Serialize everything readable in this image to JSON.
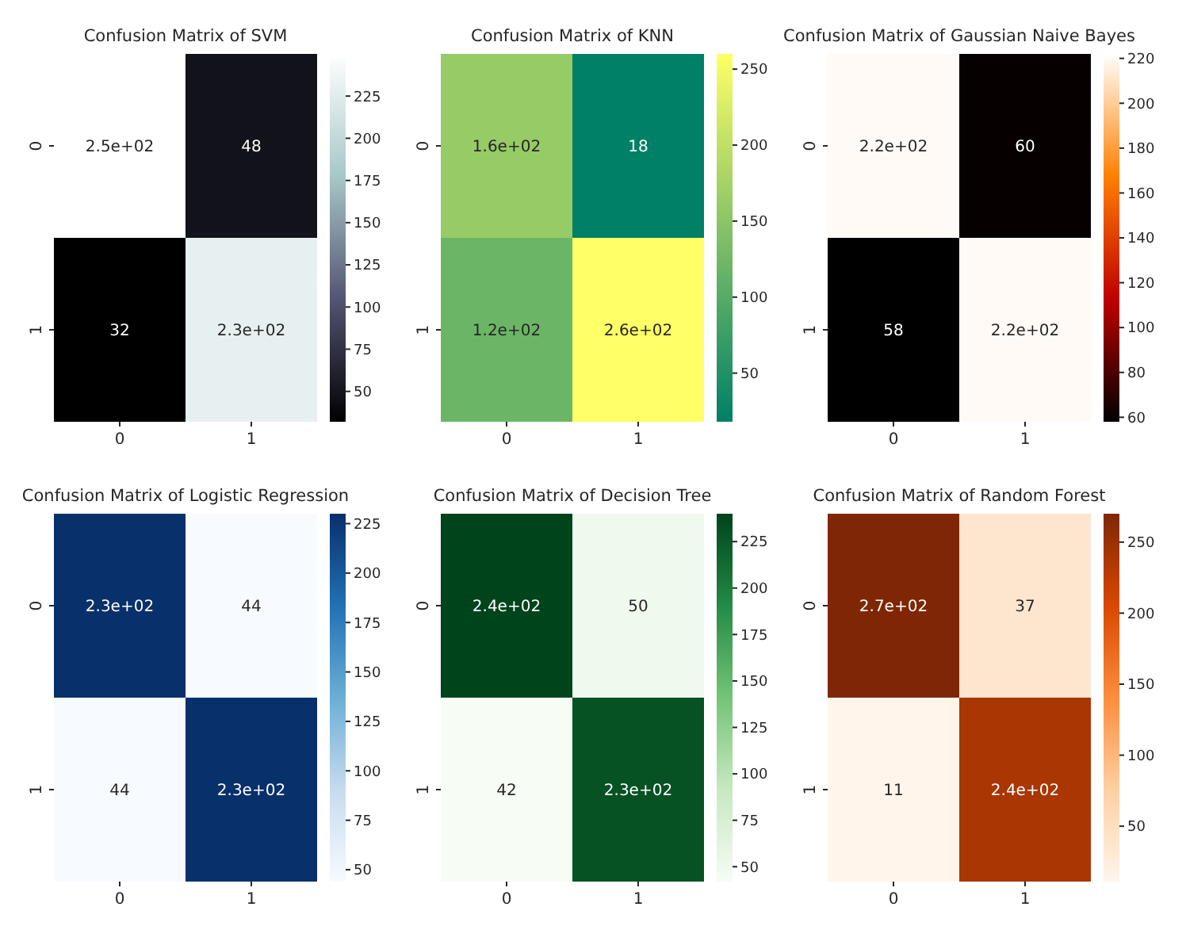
{
  "chart_data": [
    {
      "type": "heatmap",
      "title": "Confusion Matrix of SVM",
      "categories": [
        "0",
        "1"
      ],
      "y_categories": [
        "0",
        "1"
      ],
      "cells": [
        [
          250,
          48
        ],
        [
          32,
          230
        ]
      ],
      "cell_labels": [
        [
          "2.5e+02",
          "48"
        ],
        [
          "32",
          "2.3e+02"
        ]
      ],
      "clim": [
        32,
        250
      ],
      "cticks": [
        50,
        75,
        100,
        125,
        150,
        175,
        200,
        225
      ],
      "colors": [
        "#000000",
        "#545474",
        "#a7c7c7",
        "#ffffff"
      ]
    },
    {
      "type": "heatmap",
      "title": "Confusion Matrix of KNN",
      "categories": [
        "0",
        "1"
      ],
      "y_categories": [
        "0",
        "1"
      ],
      "cells": [
        [
          160,
          18
        ],
        [
          120,
          260
        ]
      ],
      "cell_labels": [
        [
          "1.6e+02",
          "18"
        ],
        [
          "1.2e+02",
          "2.6e+02"
        ]
      ],
      "clim": [
        18,
        260
      ],
      "cticks": [
        50,
        100,
        150,
        200,
        250
      ],
      "colors": [
        "#008066",
        "#ffff66"
      ]
    },
    {
      "type": "heatmap",
      "title": "Confusion Matrix of Gaussian Naive Bayes",
      "categories": [
        "0",
        "1"
      ],
      "y_categories": [
        "0",
        "1"
      ],
      "cells": [
        [
          220,
          60
        ],
        [
          58,
          220
        ]
      ],
      "cell_labels": [
        [
          "2.2e+02",
          "60"
        ],
        [
          "58",
          "2.2e+02"
        ]
      ],
      "clim": [
        58,
        222
      ],
      "cticks": [
        60,
        80,
        100,
        120,
        140,
        160,
        180,
        200,
        220
      ],
      "colors": [
        "#000000",
        "#bf0000",
        "#ff8000",
        "#ffffff"
      ]
    },
    {
      "type": "heatmap",
      "title": "Confusion Matrix of Logistic Regression",
      "categories": [
        "0",
        "1"
      ],
      "y_categories": [
        "0",
        "1"
      ],
      "cells": [
        [
          230,
          44
        ],
        [
          44,
          230
        ]
      ],
      "cell_labels": [
        [
          "2.3e+02",
          "44"
        ],
        [
          "44",
          "2.3e+02"
        ]
      ],
      "clim": [
        44,
        230
      ],
      "cticks": [
        50,
        75,
        100,
        125,
        150,
        175,
        200,
        225
      ],
      "colors": [
        "#f7fbff",
        "#c6dbef",
        "#6baed6",
        "#2171b5",
        "#08306b"
      ]
    },
    {
      "type": "heatmap",
      "title": "Confusion Matrix of Decision Tree",
      "categories": [
        "0",
        "1"
      ],
      "y_categories": [
        "0",
        "1"
      ],
      "cells": [
        [
          240,
          50
        ],
        [
          42,
          230
        ]
      ],
      "cell_labels": [
        [
          "2.4e+02",
          "50"
        ],
        [
          "42",
          "2.3e+02"
        ]
      ],
      "clim": [
        42,
        240
      ],
      "cticks": [
        50,
        75,
        100,
        125,
        150,
        175,
        200,
        225
      ],
      "colors": [
        "#f7fcf5",
        "#c7e9c0",
        "#74c476",
        "#238b45",
        "#00441b"
      ]
    },
    {
      "type": "heatmap",
      "title": "Confusion Matrix of Random Forest",
      "categories": [
        "0",
        "1"
      ],
      "y_categories": [
        "0",
        "1"
      ],
      "cells": [
        [
          270,
          37
        ],
        [
          11,
          240
        ]
      ],
      "cell_labels": [
        [
          "2.7e+02",
          "37"
        ],
        [
          "11",
          "2.4e+02"
        ]
      ],
      "clim": [
        11,
        270
      ],
      "cticks": [
        50,
        100,
        150,
        200,
        250
      ],
      "colors": [
        "#fff5eb",
        "#fdd0a2",
        "#fd8d3c",
        "#d94801",
        "#7f2704"
      ]
    }
  ]
}
